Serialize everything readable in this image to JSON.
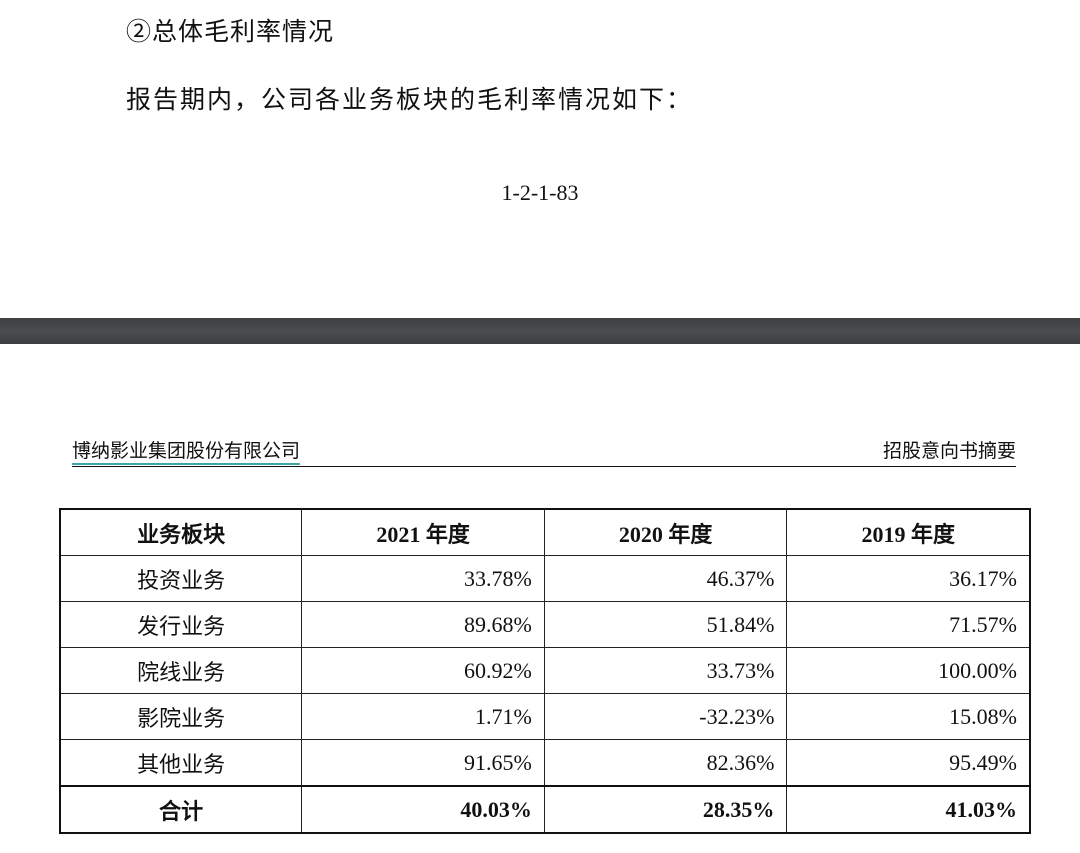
{
  "document": {
    "section_heading": "②总体毛利率情况",
    "intro_text": "报告期内，公司各业务板块的毛利率情况如下：",
    "page_number": "1-2-1-83"
  },
  "page_header": {
    "company": "博纳影业集团股份有限公司",
    "doc_title": "招股意向书摘要"
  },
  "table": {
    "headers": [
      "业务板块",
      "2021 年度",
      "2020 年度",
      "2019 年度"
    ],
    "rows": [
      {
        "segment": "投资业务",
        "y2021": "33.78%",
        "y2020": "46.37%",
        "y2019": "36.17%"
      },
      {
        "segment": "发行业务",
        "y2021": "89.68%",
        "y2020": "51.84%",
        "y2019": "71.57%"
      },
      {
        "segment": "院线业务",
        "y2021": "60.92%",
        "y2020": "33.73%",
        "y2019": "100.00%"
      },
      {
        "segment": "影院业务",
        "y2021": "1.71%",
        "y2020": "-32.23%",
        "y2019": "15.08%"
      },
      {
        "segment": "其他业务",
        "y2021": "91.65%",
        "y2020": "82.36%",
        "y2019": "95.49%"
      }
    ],
    "total": {
      "segment": "合计",
      "y2021": "40.03%",
      "y2020": "28.35%",
      "y2019": "41.03%"
    }
  }
}
